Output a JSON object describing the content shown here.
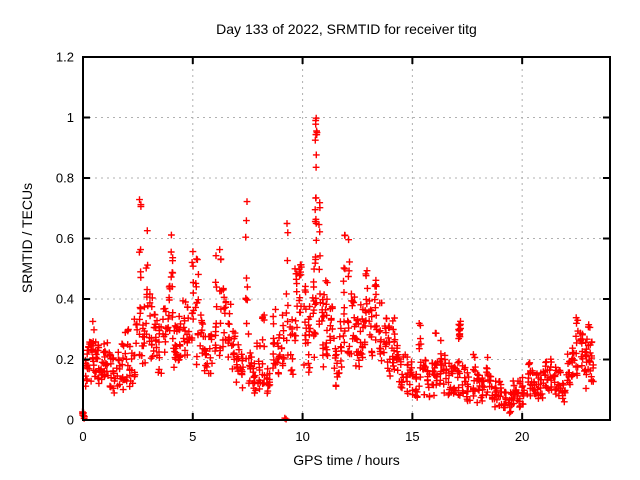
{
  "page": {
    "background": "#ffffff"
  },
  "chart_data": {
    "type": "scatter",
    "title": "Day 133 of 2022, SRMTID for receiver titg",
    "xlabel": "GPS time / hours",
    "ylabel": "SRMTID / TECUs",
    "xlim": [
      0,
      24
    ],
    "ylim": [
      0,
      1.2
    ],
    "x_ticks": [
      0,
      5,
      10,
      15,
      20
    ],
    "x_tick_labels": [
      "0",
      "5",
      "10",
      "15",
      "20"
    ],
    "y_ticks": [
      0,
      0.2,
      0.4,
      0.6,
      0.8,
      1,
      1.2
    ],
    "y_tick_labels": [
      "0",
      "0.2",
      "0.4",
      "0.6",
      "0.8",
      "1",
      "1.2"
    ],
    "grid": true,
    "legend": "none",
    "marker": "plus",
    "marker_color": "#ff0000",
    "grid_color": "#b0b0b0",
    "border_color": "#000000",
    "notable_points": {
      "max_point": [
        10.6,
        1.03
      ],
      "zero_value_hours": [
        0.0,
        9.2
      ],
      "high_spikes": [
        [
          2.6,
          0.75
        ],
        [
          2.9,
          0.63
        ],
        [
          4.05,
          0.62
        ],
        [
          5.0,
          0.6
        ],
        [
          6.05,
          0.63
        ],
        [
          7.45,
          0.73
        ],
        [
          9.3,
          0.66
        ],
        [
          10.6,
          1.03
        ],
        [
          10.78,
          0.72
        ],
        [
          11.9,
          0.64
        ],
        [
          12.1,
          0.6
        ],
        [
          15.35,
          0.33
        ],
        [
          17.15,
          0.33
        ],
        [
          22.5,
          0.34
        ]
      ],
      "data_end_hour": 23.3
    },
    "clusters_format": "[hour_center, hour_halfwidth, count, y_min, y_max] vertical burst clusters of + samples estimated from the plot",
    "clusters": [
      [
        0.02,
        0.05,
        8,
        0.004,
        0.03
      ],
      [
        0.15,
        0.08,
        12,
        0.1,
        0.24
      ],
      [
        0.3,
        0.08,
        10,
        0.12,
        0.28
      ],
      [
        0.45,
        0.08,
        12,
        0.15,
        0.33
      ],
      [
        0.6,
        0.08,
        10,
        0.14,
        0.28
      ],
      [
        0.75,
        0.08,
        10,
        0.12,
        0.25
      ],
      [
        0.9,
        0.08,
        10,
        0.13,
        0.26
      ],
      [
        1.05,
        0.08,
        10,
        0.12,
        0.27
      ],
      [
        1.2,
        0.08,
        10,
        0.1,
        0.24
      ],
      [
        1.4,
        0.08,
        10,
        0.08,
        0.22
      ],
      [
        1.6,
        0.08,
        10,
        0.1,
        0.24
      ],
      [
        1.8,
        0.08,
        10,
        0.1,
        0.26
      ],
      [
        2.0,
        0.08,
        10,
        0.12,
        0.3
      ],
      [
        2.2,
        0.08,
        10,
        0.1,
        0.28
      ],
      [
        2.4,
        0.08,
        10,
        0.14,
        0.34
      ],
      [
        2.6,
        0.04,
        14,
        0.2,
        0.75
      ],
      [
        2.75,
        0.08,
        12,
        0.15,
        0.4
      ],
      [
        2.9,
        0.05,
        9,
        0.22,
        0.63
      ],
      [
        3.1,
        0.08,
        12,
        0.2,
        0.42
      ],
      [
        3.3,
        0.08,
        12,
        0.18,
        0.36
      ],
      [
        3.5,
        0.08,
        10,
        0.15,
        0.33
      ],
      [
        3.7,
        0.08,
        10,
        0.18,
        0.38
      ],
      [
        3.9,
        0.06,
        10,
        0.2,
        0.45
      ],
      [
        4.05,
        0.04,
        11,
        0.2,
        0.62
      ],
      [
        4.2,
        0.08,
        16,
        0.17,
        0.32
      ],
      [
        4.4,
        0.08,
        10,
        0.18,
        0.35
      ],
      [
        4.6,
        0.08,
        10,
        0.2,
        0.4
      ],
      [
        4.8,
        0.08,
        10,
        0.18,
        0.44
      ],
      [
        5.0,
        0.04,
        11,
        0.22,
        0.6
      ],
      [
        5.2,
        0.07,
        13,
        0.18,
        0.54
      ],
      [
        5.4,
        0.08,
        10,
        0.2,
        0.36
      ],
      [
        5.6,
        0.08,
        10,
        0.15,
        0.3
      ],
      [
        5.8,
        0.08,
        10,
        0.15,
        0.32
      ],
      [
        6.05,
        0.04,
        11,
        0.18,
        0.63
      ],
      [
        6.25,
        0.05,
        10,
        0.2,
        0.6
      ],
      [
        6.45,
        0.08,
        12,
        0.24,
        0.44
      ],
      [
        6.65,
        0.08,
        10,
        0.2,
        0.4
      ],
      [
        6.85,
        0.08,
        10,
        0.15,
        0.3
      ],
      [
        7.05,
        0.08,
        10,
        0.12,
        0.28
      ],
      [
        7.25,
        0.08,
        10,
        0.1,
        0.25
      ],
      [
        7.45,
        0.04,
        10,
        0.18,
        0.73
      ],
      [
        7.6,
        0.08,
        10,
        0.12,
        0.3
      ],
      [
        7.8,
        0.08,
        12,
        0.08,
        0.2
      ],
      [
        8.0,
        0.08,
        10,
        0.1,
        0.26
      ],
      [
        8.2,
        0.08,
        12,
        0.12,
        0.35
      ],
      [
        8.45,
        0.08,
        12,
        0.06,
        0.18
      ],
      [
        8.7,
        0.08,
        12,
        0.14,
        0.38
      ],
      [
        8.9,
        0.08,
        10,
        0.15,
        0.3
      ],
      [
        9.1,
        0.06,
        10,
        0.16,
        0.4
      ],
      [
        9.2,
        0.06,
        2,
        0.0,
        0.01
      ],
      [
        9.3,
        0.04,
        9,
        0.2,
        0.66
      ],
      [
        9.5,
        0.07,
        10,
        0.15,
        0.35
      ],
      [
        9.7,
        0.06,
        12,
        0.25,
        0.52
      ],
      [
        9.9,
        0.06,
        12,
        0.3,
        0.55
      ],
      [
        10.1,
        0.07,
        12,
        0.18,
        0.45
      ],
      [
        10.3,
        0.07,
        12,
        0.15,
        0.38
      ],
      [
        10.5,
        0.04,
        10,
        0.2,
        0.58
      ],
      [
        10.6,
        0.03,
        20,
        0.28,
        1.03
      ],
      [
        10.63,
        0.03,
        6,
        0.93,
        1.02
      ],
      [
        10.78,
        0.04,
        10,
        0.3,
        0.72
      ],
      [
        10.95,
        0.07,
        12,
        0.15,
        0.42
      ],
      [
        11.1,
        0.06,
        12,
        0.2,
        0.48
      ],
      [
        11.3,
        0.07,
        10,
        0.15,
        0.38
      ],
      [
        11.5,
        0.08,
        12,
        0.1,
        0.3
      ],
      [
        11.7,
        0.08,
        10,
        0.15,
        0.35
      ],
      [
        11.9,
        0.04,
        12,
        0.25,
        0.64
      ],
      [
        12.1,
        0.05,
        11,
        0.2,
        0.6
      ],
      [
        12.3,
        0.08,
        12,
        0.2,
        0.42
      ],
      [
        12.5,
        0.08,
        13,
        0.17,
        0.35
      ],
      [
        12.7,
        0.08,
        12,
        0.2,
        0.4
      ],
      [
        12.9,
        0.07,
        12,
        0.22,
        0.5
      ],
      [
        13.1,
        0.08,
        12,
        0.2,
        0.42
      ],
      [
        13.35,
        0.06,
        12,
        0.22,
        0.48
      ],
      [
        13.55,
        0.08,
        12,
        0.18,
        0.4
      ],
      [
        13.75,
        0.08,
        10,
        0.15,
        0.35
      ],
      [
        13.95,
        0.08,
        10,
        0.12,
        0.32
      ],
      [
        14.15,
        0.08,
        13,
        0.14,
        0.34
      ],
      [
        14.35,
        0.08,
        10,
        0.12,
        0.28
      ],
      [
        14.55,
        0.08,
        10,
        0.1,
        0.25
      ],
      [
        14.75,
        0.08,
        10,
        0.08,
        0.22
      ],
      [
        14.95,
        0.08,
        10,
        0.08,
        0.2
      ],
      [
        15.15,
        0.08,
        10,
        0.06,
        0.18
      ],
      [
        15.35,
        0.05,
        10,
        0.1,
        0.33
      ],
      [
        15.55,
        0.08,
        10,
        0.08,
        0.2
      ],
      [
        15.75,
        0.08,
        10,
        0.06,
        0.18
      ],
      [
        15.95,
        0.08,
        10,
        0.08,
        0.2
      ],
      [
        16.1,
        0.05,
        11,
        0.1,
        0.29
      ],
      [
        16.3,
        0.06,
        10,
        0.1,
        0.28
      ],
      [
        16.5,
        0.08,
        11,
        0.08,
        0.24
      ],
      [
        16.7,
        0.08,
        10,
        0.08,
        0.2
      ],
      [
        16.9,
        0.08,
        10,
        0.07,
        0.18
      ],
      [
        17.1,
        0.07,
        10,
        0.08,
        0.2
      ],
      [
        17.15,
        0.05,
        15,
        0.26,
        0.33
      ],
      [
        17.35,
        0.08,
        10,
        0.07,
        0.18
      ],
      [
        17.55,
        0.08,
        10,
        0.06,
        0.16
      ],
      [
        17.8,
        0.08,
        11,
        0.07,
        0.22
      ],
      [
        18.0,
        0.08,
        10,
        0.05,
        0.16
      ],
      [
        18.2,
        0.08,
        10,
        0.05,
        0.15
      ],
      [
        18.4,
        0.05,
        9,
        0.08,
        0.21
      ],
      [
        18.6,
        0.08,
        10,
        0.05,
        0.15
      ],
      [
        18.8,
        0.08,
        10,
        0.04,
        0.14
      ],
      [
        19.0,
        0.08,
        10,
        0.04,
        0.13
      ],
      [
        19.2,
        0.08,
        10,
        0.03,
        0.11
      ],
      [
        19.45,
        0.08,
        10,
        0.02,
        0.1
      ],
      [
        19.65,
        0.08,
        11,
        0.04,
        0.14
      ],
      [
        19.85,
        0.08,
        10,
        0.04,
        0.13
      ],
      [
        20.05,
        0.08,
        10,
        0.05,
        0.15
      ],
      [
        20.3,
        0.08,
        12,
        0.07,
        0.2
      ],
      [
        20.5,
        0.08,
        10,
        0.08,
        0.18
      ],
      [
        20.7,
        0.08,
        10,
        0.06,
        0.16
      ],
      [
        20.9,
        0.08,
        10,
        0.07,
        0.17
      ],
      [
        21.1,
        0.08,
        11,
        0.08,
        0.2
      ],
      [
        21.3,
        0.08,
        11,
        0.09,
        0.21
      ],
      [
        21.5,
        0.08,
        10,
        0.08,
        0.18
      ],
      [
        21.7,
        0.08,
        10,
        0.07,
        0.17
      ],
      [
        21.9,
        0.08,
        10,
        0.05,
        0.14
      ],
      [
        22.1,
        0.08,
        11,
        0.1,
        0.22
      ],
      [
        22.3,
        0.07,
        11,
        0.12,
        0.26
      ],
      [
        22.5,
        0.05,
        12,
        0.14,
        0.34
      ],
      [
        22.7,
        0.06,
        11,
        0.12,
        0.3
      ],
      [
        22.9,
        0.07,
        12,
        0.1,
        0.28
      ],
      [
        23.05,
        0.05,
        12,
        0.13,
        0.33
      ],
      [
        23.2,
        0.05,
        10,
        0.12,
        0.26
      ]
    ]
  }
}
